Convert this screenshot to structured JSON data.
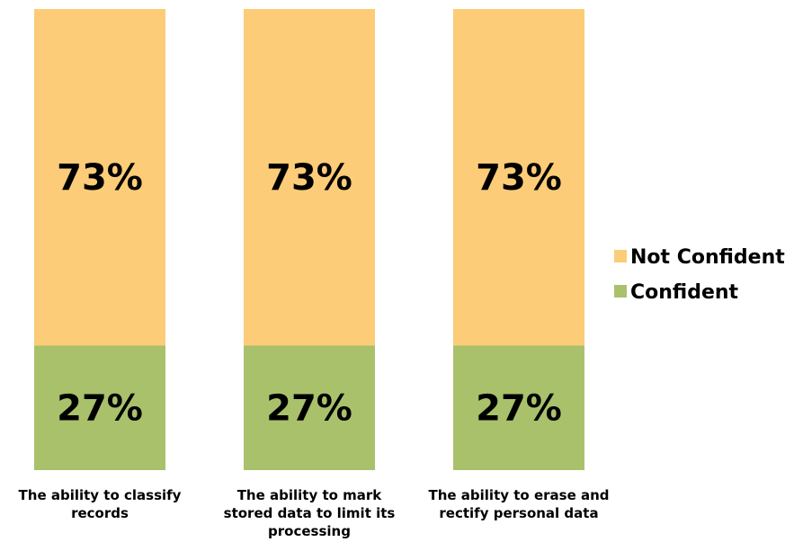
{
  "chart_data": {
    "type": "bar",
    "stacked": true,
    "categories": [
      "The ability to classify records",
      "The ability to mark stored data to limit its processing",
      "The ability to erase and rectify personal data"
    ],
    "category_label_lines": [
      [
        "The ability to classify",
        "records"
      ],
      [
        "The ability to mark",
        "stored data to limit its",
        "processing"
      ],
      [
        "The ability to erase and",
        "rectify personal data"
      ]
    ],
    "series": [
      {
        "name": "Confident",
        "values": [
          27,
          27,
          27
        ],
        "labels": [
          "27%",
          "27%",
          "27%"
        ],
        "color": "#a9c16b"
      },
      {
        "name": "Not Confident",
        "values": [
          73,
          73,
          73
        ],
        "labels": [
          "73%",
          "73%",
          "73%"
        ],
        "color": "#fccc78"
      }
    ],
    "ylim": [
      0,
      100
    ],
    "grid": false,
    "legend_position": "right",
    "legend_order": [
      "Not Confident",
      "Confident"
    ],
    "title": "",
    "xlabel": "",
    "ylabel": ""
  }
}
